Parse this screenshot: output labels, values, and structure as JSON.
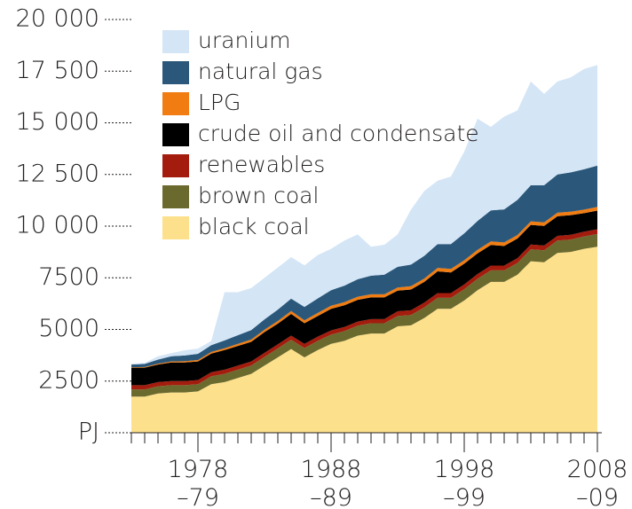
{
  "chart_data": {
    "type": "stacked-area",
    "categories": [
      null,
      null,
      null,
      null,
      null,
      "1978\n–79",
      null,
      null,
      null,
      null,
      null,
      null,
      null,
      null,
      null,
      "1988\n–89",
      null,
      null,
      null,
      null,
      null,
      null,
      null,
      null,
      null,
      "1998\n–99",
      null,
      null,
      null,
      null,
      null,
      null,
      null,
      null,
      null,
      "2008\n–09"
    ],
    "series": [
      {
        "name": "uranium",
        "color": "#d4e5f6",
        "values": [
          50,
          50,
          160,
          150,
          250,
          250,
          200,
          2330,
          2080,
          2030,
          2010,
          2040,
          2010,
          2010,
          2100,
          2000,
          2180,
          2170,
          1400,
          1450,
          1570,
          2660,
          3140,
          3070,
          3270,
          3950,
          4950,
          4040,
          4490,
          4330,
          5020,
          4420,
          4500,
          4600,
          4850,
          4870
        ]
      },
      {
        "name": "natural gas",
        "color": "#2b587a",
        "values": [
          130,
          150,
          200,
          250,
          280,
          300,
          330,
          380,
          420,
          460,
          500,
          550,
          600,
          650,
          700,
          750,
          800,
          850,
          900,
          950,
          1000,
          1050,
          1100,
          1150,
          1200,
          1300,
          1400,
          1500,
          1600,
          1700,
          1750,
          1800,
          1850,
          1900,
          1950,
          2000
        ]
      },
      {
        "name": "LPG",
        "color": "#f07c12",
        "values": [
          20,
          30,
          40,
          50,
          60,
          70,
          80,
          90,
          100,
          110,
          120,
          130,
          140,
          140,
          150,
          150,
          150,
          150,
          150,
          150,
          150,
          160,
          160,
          170,
          170,
          170,
          170,
          170,
          170,
          170,
          170,
          170,
          170,
          170,
          170,
          180
        ]
      },
      {
        "name": "crude oil and condensate",
        "color": "#000000",
        "values": [
          850,
          850,
          850,
          900,
          900,
          900,
          900,
          950,
          950,
          950,
          1000,
          1000,
          1050,
          1000,
          1000,
          1050,
          1050,
          1050,
          1050,
          1050,
          1000,
          1000,
          1000,
          1050,
          1000,
          1000,
          1000,
          1000,
          950,
          950,
          950,
          950,
          950,
          950,
          900,
          900
        ]
      },
      {
        "name": "renewables",
        "color": "#a31c0d",
        "values": [
          200,
          200,
          200,
          200,
          200,
          200,
          200,
          200,
          200,
          200,
          200,
          200,
          200,
          200,
          200,
          200,
          200,
          200,
          200,
          200,
          230,
          230,
          230,
          230,
          230,
          230,
          230,
          230,
          230,
          230,
          230,
          230,
          230,
          230,
          230,
          230
        ]
      },
      {
        "name": "brown coal",
        "color": "#6b6a2e",
        "values": [
          350,
          350,
          350,
          350,
          350,
          350,
          380,
          400,
          400,
          400,
          420,
          430,
          450,
          450,
          450,
          450,
          470,
          480,
          500,
          500,
          500,
          500,
          520,
          530,
          530,
          550,
          550,
          560,
          560,
          570,
          580,
          580,
          600,
          600,
          600,
          620
        ]
      },
      {
        "name": "black coal",
        "color": "#fde08b",
        "values": [
          1750,
          1750,
          1900,
          1950,
          1950,
          2000,
          2350,
          2450,
          2650,
          2850,
          3250,
          3650,
          4050,
          3650,
          4000,
          4300,
          4450,
          4700,
          4800,
          4800,
          5150,
          5200,
          5550,
          6000,
          6000,
          6400,
          6900,
          7300,
          7300,
          7650,
          8300,
          8250,
          8700,
          8750,
          8900,
          9000
        ]
      }
    ],
    "ylim": [
      0,
      20000
    ],
    "yticks": [
      {
        "value": 0,
        "label": "PJ"
      },
      2500,
      5000,
      7500,
      {
        "value": 10000,
        "label": "10 000"
      },
      {
        "value": 12500,
        "label": "12 500"
      },
      {
        "value": 15000,
        "label": "15 000"
      },
      {
        "value": 17500,
        "label": "17 500"
      },
      {
        "value": 20000,
        "label": "20 000"
      }
    ],
    "legend": "upper left"
  }
}
